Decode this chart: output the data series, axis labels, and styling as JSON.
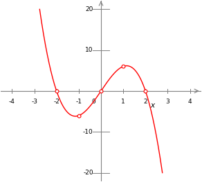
{
  "xlim": [
    -4.5,
    4.5
  ],
  "ylim": [
    -22,
    22
  ],
  "x_axis_range": [
    -4,
    4
  ],
  "y_axis_range": [
    -20,
    20
  ],
  "xticks": [
    -4,
    -3,
    -2,
    -1,
    1,
    2,
    3,
    4
  ],
  "yticks": [
    -20,
    -10,
    10,
    20
  ],
  "xlabel": "x",
  "curve_color": "#ff0000",
  "circle_points": [
    [
      -2,
      0
    ],
    [
      -1,
      -3
    ],
    [
      0,
      0
    ],
    [
      1,
      3
    ],
    [
      2,
      0
    ]
  ],
  "background_color": "#ffffff",
  "axis_color": "#808080",
  "tick_label_color": "#000000",
  "x_curve_start": -2.58,
  "x_curve_end": 2.58,
  "curve_linewidth": 1.0
}
